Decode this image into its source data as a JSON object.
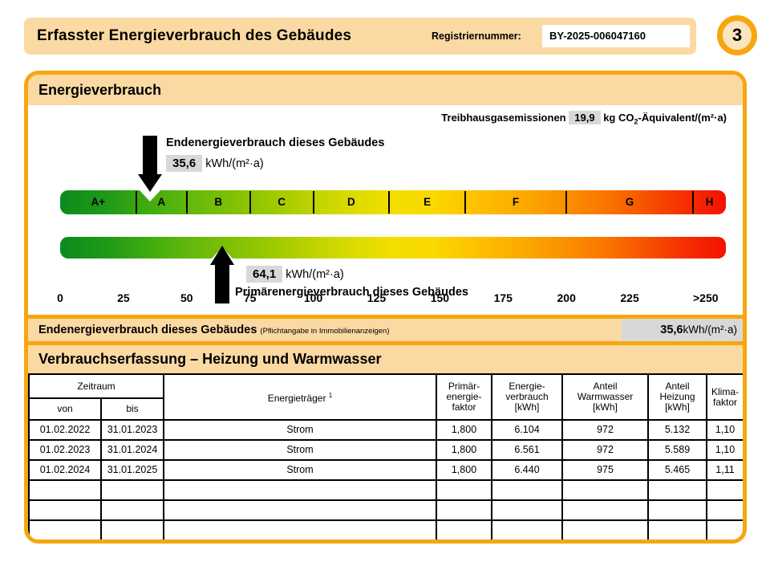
{
  "document": {
    "header": {
      "title": "Erfasster Energieverbrauch des Gebäudes",
      "registration_label": "Registriernummer:",
      "registration_number": "BY-2025-006047160",
      "page_number": "3"
    },
    "colors": {
      "accent_orange": "#F7A60F",
      "band_peach": "#FBD9A3",
      "badge_fill": "#FBE4C0",
      "value_box_gray": "#D8D8D8"
    },
    "energy_section": {
      "title": "Energieverbrauch",
      "ghg": {
        "label": "Treibhausgasemissionen",
        "value": "19,9",
        "unit_pre": "kg CO",
        "unit_sub": "2",
        "unit_post": "-Äquivalent/(m²·a)"
      },
      "end_energy": {
        "label": "Endenergieverbrauch dieses Gebäudes",
        "value": "35,6",
        "unit": "kWh/(m²·a)",
        "scale_value": 35.6
      },
      "primary_energy": {
        "label": "Primärenergieverbrauch dieses Gebäudes",
        "value": "64,1",
        "unit": "kWh/(m²·a)",
        "scale_value": 64.1
      },
      "scale": {
        "display_min": 0,
        "display_max": 263,
        "classes": [
          {
            "label": "A+",
            "from": 0,
            "to": 30
          },
          {
            "label": "A",
            "from": 30,
            "to": 50
          },
          {
            "label": "B",
            "from": 50,
            "to": 75
          },
          {
            "label": "C",
            "from": 75,
            "to": 100
          },
          {
            "label": "D",
            "from": 100,
            "to": 130
          },
          {
            "label": "E",
            "from": 130,
            "to": 160
          },
          {
            "label": "F",
            "from": 160,
            "to": 200
          },
          {
            "label": "G",
            "from": 200,
            "to": 250
          },
          {
            "label": "H",
            "from": 250,
            "to": 263
          }
        ],
        "ticks": [
          {
            "value": 0,
            "label": "0"
          },
          {
            "value": 25,
            "label": "25"
          },
          {
            "value": 50,
            "label": "50"
          },
          {
            "value": 75,
            "label": "75"
          },
          {
            "value": 100,
            "label": "100"
          },
          {
            "value": 125,
            "label": "125"
          },
          {
            "value": 150,
            "label": "150"
          },
          {
            "value": 175,
            "label": "175"
          },
          {
            "value": 200,
            "label": "200"
          },
          {
            "value": 225,
            "label": "225"
          },
          {
            "value": 255,
            "label": ">250"
          }
        ]
      }
    },
    "end_energy_row": {
      "label": "Endenergieverbrauch dieses Gebäudes",
      "note": "(Pflichtangabe in Immobilienanzeigen)",
      "value": "35,6",
      "unit": "kWh/(m²·a)"
    },
    "consumption": {
      "title": "Verbrauchserfassung – Heizung und Warmwasser",
      "table": {
        "group_header": "Zeitraum",
        "sub_headers": [
          "von",
          "bis"
        ],
        "fuel_header": "Energieträger",
        "fuel_footnote": "1",
        "value_headers": [
          "Primär-\nenergie-\nfaktor",
          "Energie-\nverbrauch\n[kWh]",
          "Anteil\nWarmwasser\n[kWh]",
          "Anteil\nHeizung\n[kWh]",
          "Klima-\nfaktor"
        ],
        "rows": [
          [
            "01.02.2022",
            "31.01.2023",
            "Strom",
            "1,800",
            "6.104",
            "972",
            "5.132",
            "1,10"
          ],
          [
            "01.02.2023",
            "31.01.2024",
            "Strom",
            "1,800",
            "6.561",
            "972",
            "5.589",
            "1,10"
          ],
          [
            "01.02.2024",
            "31.01.2025",
            "Strom",
            "1,800",
            "6.440",
            "975",
            "5.465",
            "1,11"
          ]
        ],
        "empty_row_count": 3
      }
    }
  }
}
